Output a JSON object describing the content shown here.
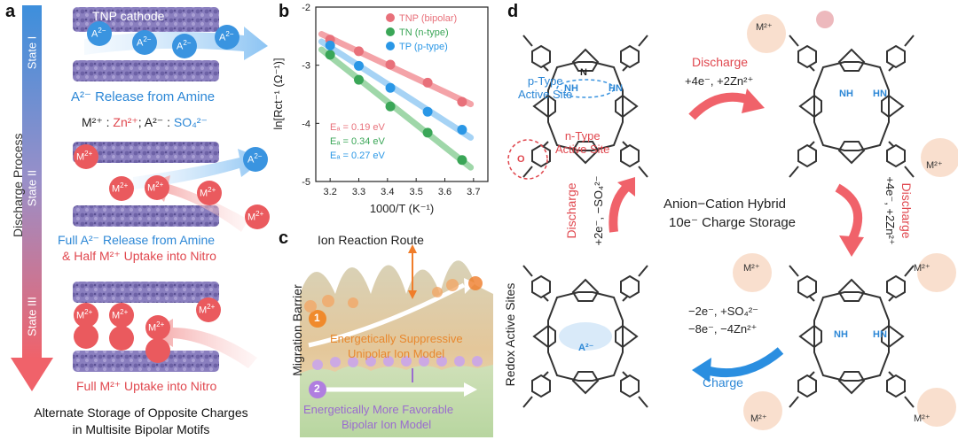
{
  "panels": {
    "a": {
      "letter": "a",
      "cathode_label": "TNP cathode",
      "axis_label": "Discharge Process",
      "state1": "State I",
      "state2": "State II",
      "state3": "State III",
      "anion": "A",
      "anion_charge": "2−",
      "cation": "M",
      "cation_charge": "2+",
      "caption1": "A²⁻ Release from Amine",
      "legend": {
        "m_label": "M²⁺ : ",
        "m_value": "Zn²⁺",
        "a_label": "; A²⁻ : ",
        "a_value": "SO₄²⁻"
      },
      "caption2_line1": "Full A²⁻ Release from Amine",
      "caption2_line2": "& Half M²⁺ Uptake into Nitro",
      "caption3": "Full M²⁺ Uptake into Nitro",
      "bottom_line1": "Alternate Storage of Opposite Charges",
      "bottom_line2": "in Multisite Bipolar Motifs"
    },
    "b": {
      "letter": "b",
      "legend_ea1": "Eₐ = 0.19 eV",
      "legend_ea2": "Eₐ = 0.34 eV",
      "legend_ea3": "Eₐ = 0.27 eV"
    },
    "c": {
      "letter": "c",
      "title": "Ion Reaction Route",
      "yaxis": "Migration Barrier",
      "num1": "1",
      "num2": "2",
      "model1_line1": "Energetically  Suppressive",
      "model1_line2": "Unipolar Ion Model",
      "model2_line1": "Energetically  More Favorable",
      "model2_line2": "Bipolar Ion Model",
      "side_label": "Redox Active Sites"
    },
    "d": {
      "letter": "d",
      "p_type_line1": "p-Type",
      "p_type_line2": "Active Site",
      "n_type_line1": "n-Type",
      "n_type_line2": "Active Site",
      "discharge_label": "Discharge",
      "step1_electrons": "+4e⁻, +2Zn²⁺",
      "step2_electrons": "+4e⁻, +2Zn²⁺",
      "step3_electrons": "+2e⁻, −SO₄²⁻",
      "center_line1": "Anion−Cation Hybrid",
      "center_line2": "10e⁻ Charge Storage",
      "charge_line1": "−2e⁻, +SO₄²⁻",
      "charge_line2": "−8e⁻, −4Zn²⁺",
      "charge_label": "Charge",
      "atom_N": "N",
      "atom_NH": "NH",
      "atom_HN": "HN",
      "atom_O": "O",
      "atom_M": "M²⁺",
      "atom_A": "A²⁻"
    }
  },
  "chart_data": {
    "type": "scatter",
    "title": "",
    "xlabel": "1000/T (K⁻¹)",
    "ylabel": "ln[Rct⁻¹ (Ω⁻¹)]",
    "xlim": [
      3.15,
      3.75
    ],
    "ylim": [
      -5,
      -2
    ],
    "xticks": [
      "3.2",
      "3.3",
      "3.4",
      "3.5",
      "3.6",
      "3.7"
    ],
    "yticks": [
      "-2",
      "-3",
      "-4",
      "-5"
    ],
    "legend_position": "top-right",
    "series": [
      {
        "name": "TNP (bipolar)",
        "color": "#e8707a",
        "x": [
          3.2,
          3.3,
          3.41,
          3.54,
          3.66
        ],
        "y": [
          -2.56,
          -2.76,
          -2.99,
          -3.3,
          -3.63
        ],
        "fit_color": "#f4a3a8"
      },
      {
        "name": "TN    (n-type)",
        "color": "#3aa657",
        "x": [
          3.2,
          3.3,
          3.41,
          3.54,
          3.66
        ],
        "y": [
          -2.82,
          -3.25,
          -3.71,
          -4.16,
          -4.63
        ],
        "fit_color": "#9fd7a9"
      },
      {
        "name": "TP    (p-type)",
        "color": "#2a97e6",
        "x": [
          3.2,
          3.3,
          3.41,
          3.54,
          3.66
        ],
        "y": [
          -2.66,
          -3.01,
          -3.39,
          -3.8,
          -4.11
        ],
        "fit_color": "#a6d3f5"
      }
    ]
  }
}
